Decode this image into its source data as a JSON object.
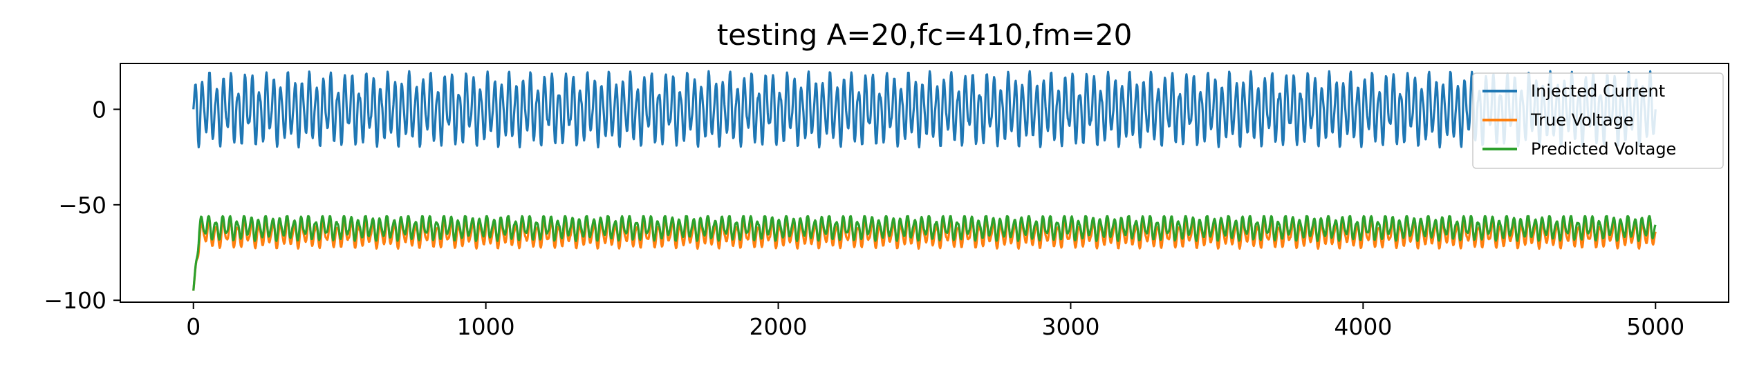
{
  "chart_data": {
    "type": "line",
    "title": "testing A=20,fc=410,fm=20",
    "xlabel": "",
    "ylabel": "",
    "xlim": [
      -250,
      5250
    ],
    "ylim": [
      -101,
      24
    ],
    "xticks": [
      0,
      1000,
      2000,
      3000,
      4000,
      5000
    ],
    "xtick_labels": [
      "0",
      "1000",
      "2000",
      "3000",
      "4000",
      "5000"
    ],
    "yticks": [
      0,
      -50,
      -100
    ],
    "ytick_labels": [
      "0",
      "−50",
      "−100"
    ],
    "grid": false,
    "legend_position": "top-right",
    "signal": {
      "n_samples": 5000,
      "amplitude": 20,
      "carrier_frequency": 410,
      "modulation_frequency": 20
    },
    "series": [
      {
        "name": "Injected Current",
        "color": "#1f77b4",
        "min": -20,
        "max": 20,
        "center": 0,
        "start_value": 0
      },
      {
        "name": "True Voltage",
        "color": "#ff7f0e",
        "min": -73,
        "max": -57,
        "center": -65,
        "start_value": -95
      },
      {
        "name": "Predicted Voltage",
        "color": "#2ca02c",
        "min": -70,
        "max": -56,
        "center": -62,
        "start_value": -95
      }
    ]
  }
}
